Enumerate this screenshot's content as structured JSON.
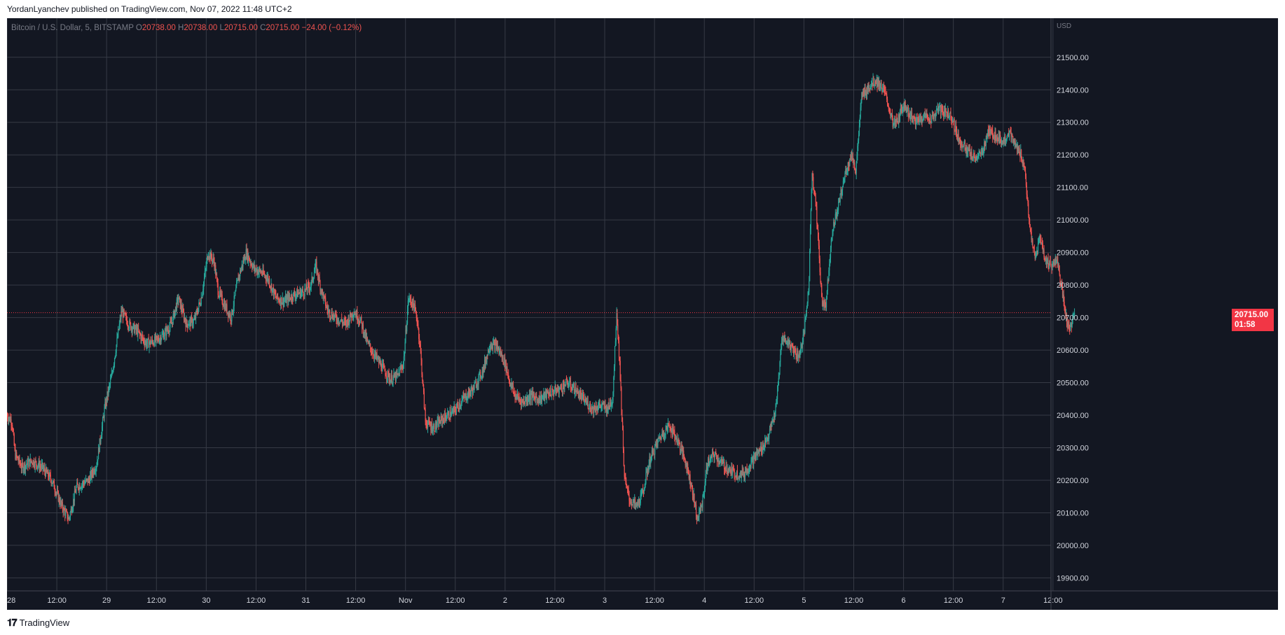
{
  "header": {
    "published_text": "YordanLyanchev published on TradingView.com, Nov 07, 2022 11:48 UTC+2"
  },
  "legend": {
    "symbol": "Bitcoin / U.S. Dollar, 5, BITSTAMP",
    "open_key": "O",
    "open": "20738.00",
    "high_key": "H",
    "high": "20738.00",
    "low_key": "L",
    "low": "20715.00",
    "close_key": "C",
    "close": "20715.00",
    "change": "−24.00 (−0.12%)"
  },
  "price_label": {
    "price": "20715.00",
    "countdown": "01:58"
  },
  "footer": {
    "brand": "TradingView"
  },
  "colors": {
    "background": "#131722",
    "grid": "#363a45",
    "up": "#26a69a",
    "down": "#ef5350",
    "last_price": "#f23645",
    "axis_text": "#d1d4dc"
  },
  "chart_data": {
    "type": "candlestick",
    "symbol": "Bitcoin / U.S. Dollar",
    "interval": "5",
    "exchange": "BITSTAMP",
    "currency_label": "USD",
    "y_ticks": [
      "19900.00",
      "20000.00",
      "20100.00",
      "20200.00",
      "20300.00",
      "20400.00",
      "20500.00",
      "20600.00",
      "20700.00",
      "20800.00",
      "20900.00",
      "21000.00",
      "21100.00",
      "21200.00",
      "21300.00",
      "21400.00",
      "21500.00"
    ],
    "ylim": [
      19860,
      21620
    ],
    "x_ticks": [
      "28",
      "12:00",
      "29",
      "12:00",
      "30",
      "12:00",
      "31",
      "12:00",
      "Nov",
      "12:00",
      "2",
      "12:00",
      "3",
      "12:00",
      "4",
      "12:00",
      "5",
      "12:00",
      "6",
      "12:00",
      "7",
      "12:00"
    ],
    "xlim_days": [
      0,
      10.48
    ],
    "last_price": 20715,
    "grid": true,
    "price_path": [
      [
        0.0,
        20400
      ],
      [
        0.05,
        20380
      ],
      [
        0.08,
        20280
      ],
      [
        0.15,
        20240
      ],
      [
        0.25,
        20260
      ],
      [
        0.35,
        20240
      ],
      [
        0.45,
        20200
      ],
      [
        0.55,
        20120
      ],
      [
        0.62,
        20080
      ],
      [
        0.7,
        20180
      ],
      [
        0.82,
        20200
      ],
      [
        0.9,
        20250
      ],
      [
        0.98,
        20420
      ],
      [
        1.05,
        20520
      ],
      [
        1.1,
        20620
      ],
      [
        1.15,
        20720
      ],
      [
        1.22,
        20680
      ],
      [
        1.3,
        20660
      ],
      [
        1.4,
        20620
      ],
      [
        1.5,
        20630
      ],
      [
        1.58,
        20650
      ],
      [
        1.65,
        20680
      ],
      [
        1.72,
        20760
      ],
      [
        1.8,
        20680
      ],
      [
        1.88,
        20690
      ],
      [
        1.95,
        20760
      ],
      [
        2.02,
        20900
      ],
      [
        2.08,
        20870
      ],
      [
        2.12,
        20780
      ],
      [
        2.18,
        20740
      ],
      [
        2.25,
        20700
      ],
      [
        2.32,
        20820
      ],
      [
        2.4,
        20900
      ],
      [
        2.48,
        20850
      ],
      [
        2.55,
        20840
      ],
      [
        2.62,
        20820
      ],
      [
        2.7,
        20760
      ],
      [
        2.78,
        20750
      ],
      [
        2.88,
        20770
      ],
      [
        2.98,
        20780
      ],
      [
        3.05,
        20800
      ],
      [
        3.1,
        20860
      ],
      [
        3.15,
        20790
      ],
      [
        3.22,
        20720
      ],
      [
        3.3,
        20700
      ],
      [
        3.4,
        20680
      ],
      [
        3.48,
        20720
      ],
      [
        3.55,
        20690
      ],
      [
        3.62,
        20620
      ],
      [
        3.7,
        20580
      ],
      [
        3.78,
        20540
      ],
      [
        3.85,
        20510
      ],
      [
        3.92,
        20520
      ],
      [
        3.98,
        20560
      ],
      [
        4.03,
        20760
      ],
      [
        4.08,
        20740
      ],
      [
        4.12,
        20690
      ],
      [
        4.15,
        20600
      ],
      [
        4.2,
        20380
      ],
      [
        4.28,
        20360
      ],
      [
        4.38,
        20390
      ],
      [
        4.48,
        20410
      ],
      [
        4.58,
        20450
      ],
      [
        4.68,
        20480
      ],
      [
        4.78,
        20540
      ],
      [
        4.85,
        20620
      ],
      [
        4.92,
        20610
      ],
      [
        5.0,
        20560
      ],
      [
        5.05,
        20500
      ],
      [
        5.1,
        20460
      ],
      [
        5.18,
        20440
      ],
      [
        5.25,
        20460
      ],
      [
        5.35,
        20450
      ],
      [
        5.45,
        20470
      ],
      [
        5.55,
        20480
      ],
      [
        5.62,
        20500
      ],
      [
        5.7,
        20480
      ],
      [
        5.78,
        20450
      ],
      [
        5.88,
        20420
      ],
      [
        5.95,
        20430
      ],
      [
        6.03,
        20420
      ],
      [
        6.08,
        20450
      ],
      [
        6.12,
        20720
      ],
      [
        6.15,
        20560
      ],
      [
        6.2,
        20200
      ],
      [
        6.25,
        20140
      ],
      [
        6.32,
        20120
      ],
      [
        6.38,
        20160
      ],
      [
        6.45,
        20260
      ],
      [
        6.55,
        20330
      ],
      [
        6.65,
        20370
      ],
      [
        6.75,
        20310
      ],
      [
        6.82,
        20250
      ],
      [
        6.88,
        20170
      ],
      [
        6.93,
        20080
      ],
      [
        6.98,
        20130
      ],
      [
        7.03,
        20250
      ],
      [
        7.1,
        20280
      ],
      [
        7.18,
        20250
      ],
      [
        7.25,
        20230
      ],
      [
        7.32,
        20220
      ],
      [
        7.4,
        20220
      ],
      [
        7.48,
        20260
      ],
      [
        7.58,
        20300
      ],
      [
        7.65,
        20340
      ],
      [
        7.72,
        20420
      ],
      [
        7.78,
        20640
      ],
      [
        7.85,
        20620
      ],
      [
        7.9,
        20600
      ],
      [
        7.95,
        20580
      ],
      [
        8.0,
        20650
      ],
      [
        8.05,
        20800
      ],
      [
        8.08,
        21150
      ],
      [
        8.12,
        21050
      ],
      [
        8.18,
        20750
      ],
      [
        8.22,
        20740
      ],
      [
        8.28,
        20960
      ],
      [
        8.35,
        21050
      ],
      [
        8.42,
        21150
      ],
      [
        8.48,
        21200
      ],
      [
        8.52,
        21150
      ],
      [
        8.58,
        21380
      ],
      [
        8.65,
        21410
      ],
      [
        8.72,
        21430
      ],
      [
        8.8,
        21400
      ],
      [
        8.85,
        21350
      ],
      [
        8.9,
        21290
      ],
      [
        8.95,
        21310
      ],
      [
        9.0,
        21360
      ],
      [
        9.05,
        21330
      ],
      [
        9.12,
        21300
      ],
      [
        9.2,
        21320
      ],
      [
        9.28,
        21310
      ],
      [
        9.35,
        21340
      ],
      [
        9.42,
        21330
      ],
      [
        9.48,
        21320
      ],
      [
        9.55,
        21250
      ],
      [
        9.62,
        21220
      ],
      [
        9.7,
        21190
      ],
      [
        9.78,
        21200
      ],
      [
        9.85,
        21270
      ],
      [
        9.92,
        21260
      ],
      [
        10.0,
        21240
      ],
      [
        10.05,
        21270
      ],
      [
        10.12,
        21230
      ],
      [
        10.18,
        21200
      ],
      [
        10.22,
        21150
      ],
      [
        10.26,
        20990
      ],
      [
        10.32,
        20880
      ],
      [
        10.37,
        20950
      ],
      [
        10.42,
        20880
      ],
      [
        10.48,
        20860
      ],
      [
        10.54,
        20880
      ],
      [
        10.58,
        20800
      ],
      [
        10.62,
        20720
      ],
      [
        10.66,
        20660
      ],
      [
        10.72,
        20715
      ]
    ]
  }
}
